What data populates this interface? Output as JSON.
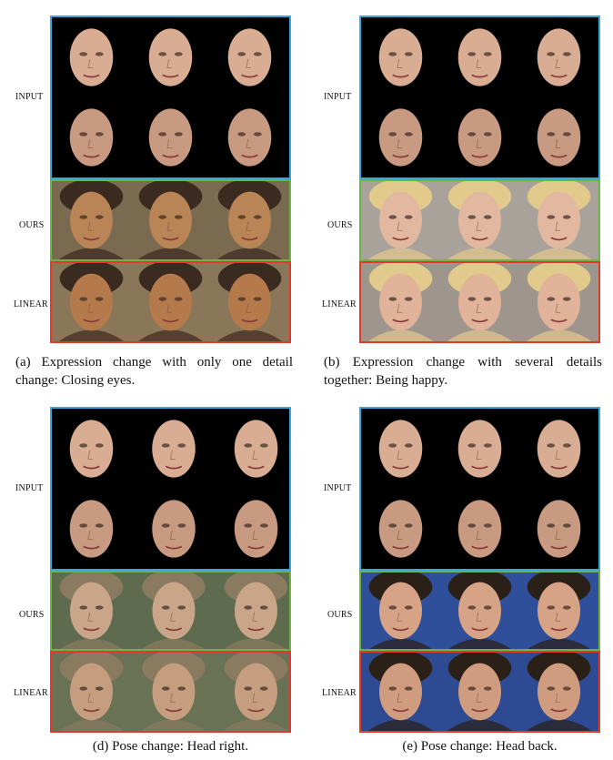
{
  "labels": {
    "input": "INPUT",
    "ours": "OURS",
    "linear": "LINEAR"
  },
  "panels": [
    {
      "id": "a",
      "caption": "(a) Expression change with only one detail change: Closing eyes.",
      "ours_bg": "#7a6a50",
      "linear_bg": "#8a7658",
      "ours_tone": "#b98456",
      "linear_tone": "#b47a4c"
    },
    {
      "id": "b",
      "caption": "(b) Expression change with several details together: Being happy.",
      "ours_bg": "#a8a29a",
      "linear_bg": "#9e958d",
      "ours_tone": "#e3b8a0",
      "linear_tone": "#e0b39a"
    },
    {
      "id": "d",
      "caption": "(d) Pose change: Head right.",
      "ours_bg": "#5e6b4e",
      "linear_bg": "#6a7256",
      "ours_tone": "#c9a68a",
      "linear_tone": "#c59e80"
    },
    {
      "id": "e",
      "caption": "(e) Pose change: Head back.",
      "ours_bg": "#2f4f9a",
      "linear_bg": "#2d4a92",
      "ours_tone": "#d7a386",
      "linear_tone": "#d09c80"
    }
  ]
}
